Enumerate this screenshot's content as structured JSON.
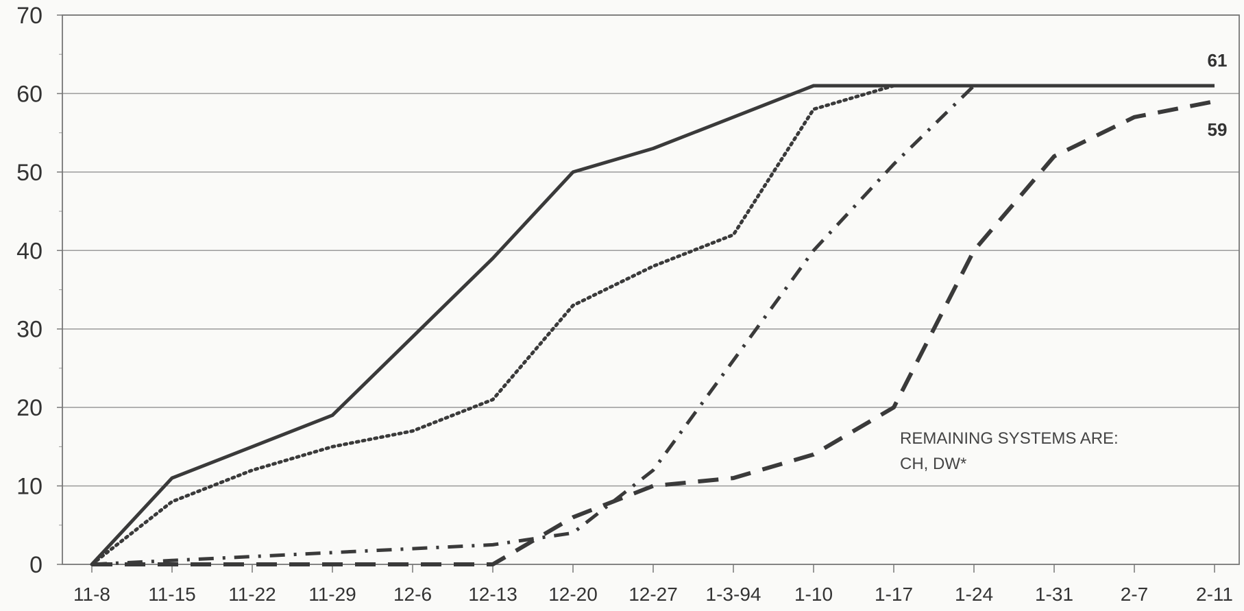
{
  "chart_data": {
    "type": "line",
    "title": "",
    "xlabel": "",
    "ylabel": "",
    "categories": [
      "11-8",
      "11-15",
      "11-22",
      "11-29",
      "12-6",
      "12-13",
      "12-20",
      "12-27",
      "1-3-94",
      "1-10",
      "1-17",
      "1-24",
      "1-31",
      "2-7",
      "2-11"
    ],
    "ylim": [
      0,
      70
    ],
    "yticks": [
      0,
      10,
      20,
      30,
      40,
      50,
      60,
      70
    ],
    "grid": true,
    "series": [
      {
        "style": "solid",
        "color": "#3a3a3a",
        "values": [
          0,
          11,
          15,
          19,
          29,
          39,
          50,
          53,
          57,
          61,
          61,
          61,
          61,
          61,
          61
        ]
      },
      {
        "style": "dotted",
        "color": "#3a3a3a",
        "values": [
          0,
          8,
          12,
          15,
          17,
          21,
          33,
          38,
          42,
          58,
          61,
          61,
          null,
          null,
          null
        ]
      },
      {
        "style": "dashdot",
        "color": "#3a3a3a",
        "values": [
          0,
          0.5,
          1,
          1.5,
          2,
          2.5,
          4,
          12,
          26,
          40,
          51,
          61,
          null,
          null,
          null
        ]
      },
      {
        "style": "longdash",
        "color": "#3a3a3a",
        "values": [
          0,
          0,
          0,
          0,
          0,
          0,
          6,
          10,
          11,
          14,
          20,
          40,
          52,
          57,
          59
        ]
      }
    ],
    "end_labels": [
      {
        "text": "61",
        "value": 61
      },
      {
        "text": "59",
        "value": 59
      }
    ],
    "annotation": {
      "lines": [
        "REMAINING SYSTEMS ARE:",
        "CH, DW*"
      ]
    }
  }
}
